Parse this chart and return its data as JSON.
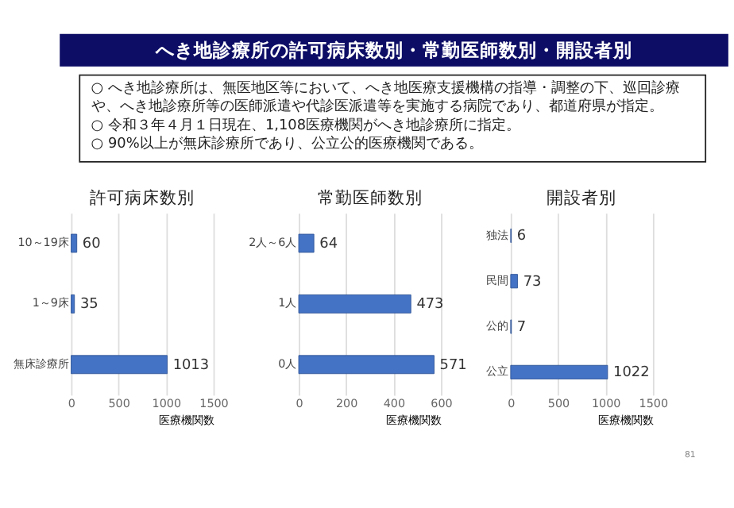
{
  "chart_data": [
    {
      "type": "bar",
      "orientation": "horizontal",
      "title": "許可病床数別",
      "xlabel": "医療機関数",
      "categories": [
        "10～19床",
        "1～9床",
        "無床診療所"
      ],
      "values": [
        60,
        35,
        1013
      ],
      "color": "#4472c4",
      "xlim": [
        0,
        1500
      ],
      "xticks": [
        0,
        500,
        1000,
        1500
      ],
      "grid": "x",
      "data_labels": true,
      "annotations": [
        "へき地診療所の許可病床数別・常勤医師数別・開設者別",
        "○ へき地診療所は、無医地区等において、へき地医療支援機構の指導・調整の下、巡回診療や、へき地診療所等の医師派遣や代診医派遣等を実施する病院であり、都道府県が指定。",
        "○ 令和３年４月１日現在、1,108医療機関がへき地診療所に指定。",
        "○ 90%以上が無床診療所であり、公立公的医療機関である。"
      ]
    },
    {
      "type": "bar",
      "orientation": "horizontal",
      "title": "常勤医師数別",
      "xlabel": "医療機関数",
      "categories": [
        "2人～6人",
        "1人",
        "0人"
      ],
      "values": [
        64,
        473,
        571
      ],
      "color": "#4472c4",
      "xlim": [
        0,
        600
      ],
      "xticks": [
        0,
        200,
        400,
        600
      ],
      "grid": "x",
      "data_labels": true
    },
    {
      "type": "bar",
      "orientation": "horizontal",
      "title": "開設者別",
      "xlabel": "医療機関数",
      "categories": [
        "独法",
        "民間",
        "公的",
        "公立"
      ],
      "values": [
        6,
        73,
        7,
        1022
      ],
      "color": "#4472c4",
      "xlim": [
        0,
        1500
      ],
      "xticks": [
        0,
        500,
        1000,
        1500
      ],
      "grid": "x",
      "data_labels": true,
      "annotations": [
        "81"
      ]
    }
  ]
}
